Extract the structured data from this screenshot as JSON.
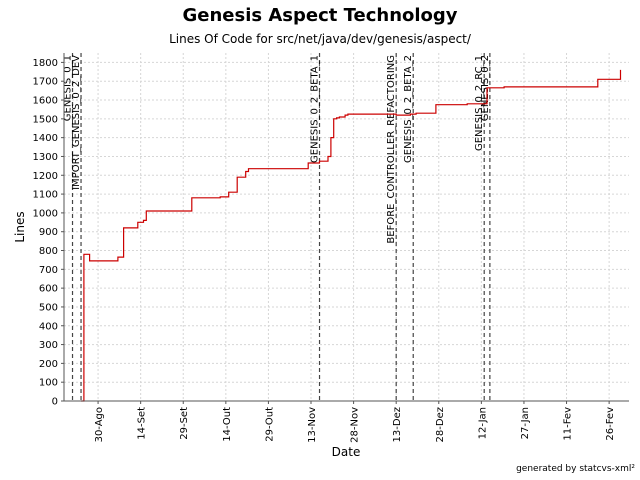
{
  "chart_data": {
    "type": "line",
    "title": "Genesis Aspect Technology",
    "subtitle": "Lines Of Code for src/net/java/dev/genesis/aspect/",
    "xlabel": "Date",
    "ylabel": "Lines",
    "footer": "generated by statcvs-xml²",
    "line_color": "#cc0000",
    "grid": true,
    "x_domain": [
      "2005-08-18",
      "2006-03-05"
    ],
    "ylim": [
      0,
      1850
    ],
    "y_ticks": [
      0,
      100,
      200,
      300,
      400,
      500,
      600,
      700,
      800,
      900,
      1000,
      1100,
      1200,
      1300,
      1400,
      1500,
      1600,
      1700,
      1800
    ],
    "x_ticks": [
      {
        "date": "2005-08-30",
        "label": "30-Ago"
      },
      {
        "date": "2005-09-14",
        "label": "14-Set"
      },
      {
        "date": "2005-09-29",
        "label": "29-Set"
      },
      {
        "date": "2005-10-14",
        "label": "14-Out"
      },
      {
        "date": "2005-10-29",
        "label": "29-Out"
      },
      {
        "date": "2005-11-13",
        "label": "13-Nov"
      },
      {
        "date": "2005-11-28",
        "label": "28-Nov"
      },
      {
        "date": "2005-12-13",
        "label": "13-Dez"
      },
      {
        "date": "2005-12-28",
        "label": "28-Dez"
      },
      {
        "date": "2006-01-12",
        "label": "12-Jan"
      },
      {
        "date": "2006-01-27",
        "label": "27-Jan"
      },
      {
        "date": "2006-02-11",
        "label": "11-Fev"
      },
      {
        "date": "2006-02-26",
        "label": "26-Fev"
      }
    ],
    "markers": [
      {
        "date": "2005-08-21",
        "label": "GENESIS_0_1"
      },
      {
        "date": "2005-08-24",
        "label": "IMPORT_GENESIS_0_2_DEV"
      },
      {
        "date": "2005-11-16",
        "label": "GENESIS_0_2_BETA_1"
      },
      {
        "date": "2005-12-13",
        "label": "BEFORE_CONTROLLER_REFACTORING"
      },
      {
        "date": "2005-12-19",
        "label": "GENESIS_0_2_BETA_2"
      },
      {
        "date": "2006-01-13",
        "label": "GENESIS_0_2_RC_1"
      },
      {
        "date": "2006-01-15",
        "label": "GENESIS_0_2"
      }
    ],
    "series": [
      {
        "type": "step",
        "x": [
          "2005-08-24",
          "2005-08-25",
          "2005-08-27",
          "2005-09-05",
          "2005-09-06",
          "2005-09-08",
          "2005-09-10",
          "2005-09-13",
          "2005-09-15",
          "2005-09-16",
          "2005-09-24",
          "2005-10-02",
          "2005-10-07",
          "2005-10-12",
          "2005-10-14",
          "2005-10-15",
          "2005-10-17",
          "2005-10-18",
          "2005-10-20",
          "2005-10-21",
          "2005-10-22",
          "2005-10-27",
          "2005-11-11",
          "2005-11-12",
          "2005-11-16",
          "2005-11-19",
          "2005-11-20",
          "2005-11-21",
          "2005-11-22",
          "2005-11-23",
          "2005-11-25",
          "2005-11-26",
          "2005-12-01",
          "2005-12-13",
          "2005-12-18",
          "2005-12-20",
          "2005-12-21",
          "2005-12-27",
          "2006-01-02",
          "2006-01-06",
          "2006-01-07",
          "2006-01-11",
          "2006-01-14",
          "2006-01-20",
          "2006-02-16",
          "2006-02-22",
          "2006-03-01",
          "2006-03-02"
        ],
        "y": [
          0,
          780,
          745,
          745,
          765,
          920,
          920,
          950,
          960,
          1010,
          1010,
          1080,
          1080,
          1085,
          1085,
          1110,
          1110,
          1190,
          1190,
          1220,
          1235,
          1235,
          1235,
          1265,
          1275,
          1300,
          1400,
          1500,
          1505,
          1510,
          1520,
          1525,
          1525,
          1520,
          1525,
          1530,
          1530,
          1575,
          1575,
          1575,
          1580,
          1580,
          1665,
          1670,
          1670,
          1710,
          1710,
          1760
        ]
      }
    ]
  }
}
